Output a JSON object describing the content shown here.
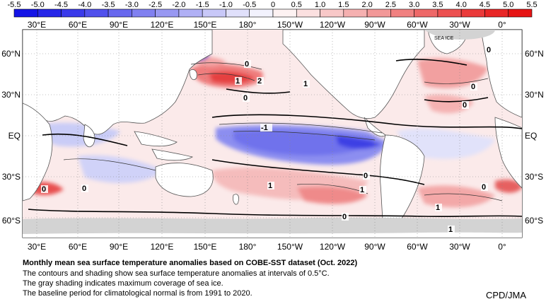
{
  "colorbar": {
    "labels": [
      "-5.5",
      "-5.0",
      "-4.5",
      "-4.0",
      "-3.5",
      "-3.0",
      "-2.5",
      "-2.0",
      "-1.5",
      "-1.0",
      "-0.5",
      "0",
      "0.5",
      "1.0",
      "1.5",
      "2.0",
      "2.5",
      "3.0",
      "3.5",
      "4.0",
      "4.5",
      "5.0",
      "5.5"
    ],
    "colors": [
      "#1414e6",
      "#2626e8",
      "#3a3aea",
      "#5050ec",
      "#6868ee",
      "#8080f0",
      "#9898f2",
      "#b0b0f5",
      "#c8c8f8",
      "#e0e0fb",
      "#f2f2fd",
      "#fdf2f2",
      "#fbe0e0",
      "#f8c8c8",
      "#f5b0b0",
      "#f29898",
      "#f08080",
      "#ee6868",
      "#ec5050",
      "#ea3a3a",
      "#e82626",
      "#e61414"
    ]
  },
  "map": {
    "lon_labels": [
      "30°E",
      "60°E",
      "90°E",
      "120°E",
      "150°E",
      "180°",
      "150°W",
      "120°W",
      "90°W",
      "60°W",
      "30°W",
      "0°"
    ],
    "lat_labels": [
      "60°N",
      "30°N",
      "EQ",
      "30°S",
      "60°S"
    ],
    "sea_ice_label": "SEA ICE",
    "contour_labels": [
      "0",
      "1",
      "2",
      "0",
      "1",
      "0",
      "-1",
      "0",
      "1",
      "1",
      "0",
      "0",
      "0",
      "1",
      "0",
      "1",
      "0",
      "0"
    ]
  },
  "caption": {
    "title": "Monthly mean sea surface temperature anomalies based on COBE-SST dataset (Oct. 2022)",
    "line1": "The contours and shading show sea surface temperature anomalies at intervals of 0.5°C.",
    "line2": "The gray shading indicates maximum coverage of sea ice.",
    "line3": "The baseline period for climatological normal is from 1991 to 2020."
  },
  "credit": "CPD/JMA"
}
